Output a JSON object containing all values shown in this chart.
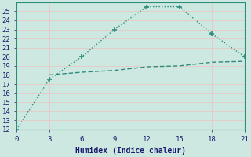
{
  "xlabel": "Humidex (Indice chaleur)",
  "line1_x": [
    0,
    3,
    6,
    9,
    12,
    15,
    18,
    21
  ],
  "line1_y": [
    12,
    17.5,
    20,
    23,
    25.5,
    25.5,
    22.5,
    20
  ],
  "line2_x": [
    3,
    6,
    9,
    12,
    15,
    18,
    21
  ],
  "line2_y": [
    18,
    18.3,
    18.5,
    18.9,
    19.0,
    19.4,
    19.5
  ],
  "line_color": "#2e8b7a",
  "bg_color": "#cce8e0",
  "grid_color": "#e8c8c8",
  "xlim": [
    0,
    21
  ],
  "ylim": [
    12,
    26
  ],
  "xticks": [
    0,
    3,
    6,
    9,
    12,
    15,
    18,
    21
  ],
  "yticks": [
    12,
    13,
    14,
    15,
    16,
    17,
    18,
    19,
    20,
    21,
    22,
    23,
    24,
    25
  ],
  "xlabel_fontsize": 7,
  "tick_fontsize": 6.5
}
